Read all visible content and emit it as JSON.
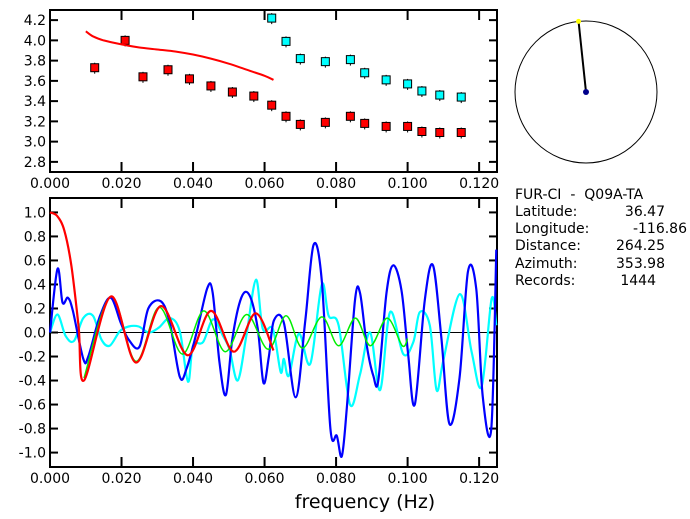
{
  "info": {
    "title": "FUR-CI  -  Q09A-TA",
    "rows": [
      {
        "label": "Latitude:",
        "value": "36.47"
      },
      {
        "label": "Longitude:",
        "value": "-116.86"
      },
      {
        "label": "Distance:",
        "value": "264.25"
      },
      {
        "label": "Azimuth:",
        "value": "353.98"
      },
      {
        "label": "Records:",
        "value": "1444"
      }
    ]
  },
  "colors": {
    "red": "#ff0000",
    "cyan": "#00ffff",
    "blue": "#0000ff",
    "green": "#00ee00",
    "yellow": "#ffff00",
    "navy": "#00008b"
  },
  "chart_data": [
    {
      "type": "scatter",
      "title": "",
      "xlabel": "",
      "ylabel": "",
      "xlim": [
        0,
        0.125
      ],
      "ylim": [
        2.7,
        4.3
      ],
      "xticks": [
        "0.000",
        "0.020",
        "0.040",
        "0.060",
        "0.080",
        "0.100",
        "0.120"
      ],
      "yticks": [
        "2.8",
        "3.0",
        "3.2",
        "3.4",
        "3.6",
        "3.8",
        "4.0",
        "4.2"
      ],
      "series": [
        {
          "name": "red-points",
          "color": "red",
          "kind": "squares",
          "x": [
            0.0125,
            0.021,
            0.026,
            0.033,
            0.039,
            0.045,
            0.051,
            0.057,
            0.062,
            0.066,
            0.07,
            0.077,
            0.084,
            0.088,
            0.094,
            0.1,
            0.104,
            0.109,
            0.115
          ],
          "y": [
            3.73,
            4.0,
            3.64,
            3.71,
            3.62,
            3.55,
            3.49,
            3.45,
            3.36,
            3.25,
            3.17,
            3.19,
            3.25,
            3.18,
            3.15,
            3.15,
            3.1,
            3.09,
            3.09
          ]
        },
        {
          "name": "cyan-points",
          "color": "cyan",
          "kind": "squares",
          "x": [
            0.062,
            0.066,
            0.07,
            0.077,
            0.084,
            0.088,
            0.094,
            0.1,
            0.104,
            0.109,
            0.115
          ],
          "y": [
            4.22,
            3.99,
            3.82,
            3.79,
            3.81,
            3.68,
            3.61,
            3.57,
            3.5,
            3.46,
            3.44
          ]
        },
        {
          "name": "red-curve",
          "color": "red",
          "kind": "line",
          "x": [
            0.01,
            0.012,
            0.015,
            0.02,
            0.025,
            0.03,
            0.035,
            0.04,
            0.045,
            0.05,
            0.055,
            0.06,
            0.0625
          ],
          "y": [
            4.09,
            4.04,
            4.0,
            3.96,
            3.93,
            3.91,
            3.89,
            3.86,
            3.82,
            3.77,
            3.71,
            3.65,
            3.61
          ]
        }
      ]
    },
    {
      "type": "line",
      "xlabel": "frequency (Hz)",
      "ylabel": "",
      "xlim": [
        0,
        0.125
      ],
      "ylim": [
        -1.12,
        1.12
      ],
      "xticks": [
        "0.000",
        "0.020",
        "0.040",
        "0.060",
        "0.080",
        "0.100",
        "0.120"
      ],
      "yticks": [
        "-1.0",
        "-0.8",
        "-0.6",
        "-0.4",
        "-0.2",
        "0.0",
        "0.2",
        "0.4",
        "0.6",
        "0.8",
        "1.0"
      ],
      "series": [
        {
          "name": "cyan",
          "color": "cyan",
          "x": [
            0,
            0.0021,
            0.0044,
            0.0067,
            0.0093,
            0.012,
            0.0144,
            0.0167,
            0.0195,
            0.022,
            0.0248,
            0.0276,
            0.0304,
            0.0335,
            0.0363,
            0.0386,
            0.04,
            0.0428,
            0.0456,
            0.0484,
            0.0502,
            0.0525,
            0.0549,
            0.0576,
            0.0595,
            0.0623,
            0.0645,
            0.0654,
            0.0668,
            0.0696,
            0.0728,
            0.076,
            0.0779,
            0.0807,
            0.0839,
            0.0867,
            0.0895,
            0.0923,
            0.0951,
            0.0988,
            0.1016,
            0.1034,
            0.1062,
            0.1081,
            0.11,
            0.1146,
            0.1179,
            0.1207,
            0.1235,
            0.1248
          ],
          "y": [
            0,
            0.15,
            -0.03,
            -0.07,
            0.12,
            0.14,
            -0.06,
            -0.11,
            0.01,
            0.05,
            0.05,
            0,
            0.04,
            0.12,
            0.01,
            -0.41,
            -0.11,
            -0.08,
            0.11,
            -0.03,
            -0.14,
            -0.4,
            -0.03,
            0.44,
            0.03,
            0.03,
            -0.33,
            -0.22,
            -0.36,
            -0.01,
            -0.26,
            0.4,
            0.14,
            0.06,
            -0.6,
            -0.35,
            0,
            -0.48,
            0.17,
            -0.18,
            -0.08,
            0.17,
            0.06,
            -0.48,
            -0.23,
            0.32,
            -0.16,
            -0.45,
            0.28,
            0.06
          ]
        },
        {
          "name": "blue",
          "color": "blue",
          "x": [
            0,
            0.0021,
            0.0035,
            0.005,
            0.0064,
            0.0093,
            0.0107,
            0.014,
            0.017,
            0.0198,
            0.022,
            0.025,
            0.0275,
            0.031,
            0.0335,
            0.0363,
            0.0382,
            0.041,
            0.044,
            0.0455,
            0.0474,
            0.0492,
            0.051,
            0.0535,
            0.0558,
            0.0581,
            0.0597,
            0.0612,
            0.0626,
            0.0654,
            0.0687,
            0.0714,
            0.0737,
            0.076,
            0.0784,
            0.0802,
            0.0816,
            0.083,
            0.0853,
            0.0867,
            0.0886,
            0.0904,
            0.0918,
            0.0941,
            0.096,
            0.0983,
            0.1001,
            0.102,
            0.1048,
            0.1071,
            0.1094,
            0.1117,
            0.1145,
            0.1169,
            0.1192,
            0.121,
            0.1234,
            0.1248
          ],
          "y": [
            0,
            0.53,
            0.25,
            0.29,
            0.18,
            -0.22,
            -0.2,
            0.14,
            0.29,
            0.08,
            -0.06,
            -0.12,
            0.2,
            0.26,
            0.08,
            -0.37,
            -0.3,
            0,
            0.37,
            0.33,
            -0.25,
            -0.52,
            -0.05,
            0.29,
            0.31,
            0.03,
            -0.42,
            -0.2,
            0.1,
            0.08,
            -0.54,
            0.1,
            0.73,
            0.43,
            -0.8,
            -0.86,
            -1.03,
            -0.63,
            0.27,
            0.33,
            -0.11,
            -0.36,
            -0.4,
            0.33,
            0.56,
            0.35,
            -0.17,
            -0.6,
            0.27,
            0.56,
            -0.03,
            -0.76,
            -0.38,
            0.51,
            0.36,
            -0.53,
            -0.8,
            0.69
          ]
        },
        {
          "name": "green",
          "color": "green",
          "x": [
            0.0095,
            0.017,
            0.024,
            0.0305,
            0.037,
            0.043,
            0.049,
            0.055,
            0.061,
            0.066,
            0.0706,
            0.076,
            0.0807,
            0.0854,
            0.0896,
            0.0943,
            0.0985,
            0.1
          ],
          "y": [
            -0.38,
            0.3,
            -0.24,
            0.21,
            -0.18,
            0.18,
            -0.16,
            0.15,
            -0.14,
            0.14,
            -0.13,
            0.13,
            -0.11,
            0.12,
            -0.11,
            0.12,
            -0.11,
            -0.05
          ]
        },
        {
          "name": "red",
          "color": "red",
          "x": [
            0,
            0.002,
            0.004,
            0.006,
            0.008,
            0.0095,
            0.017,
            0.024,
            0.031,
            0.0385,
            0.045,
            0.0514,
            0.0575,
            0.0625
          ],
          "y": [
            1.0,
            0.97,
            0.85,
            0.55,
            0.05,
            -0.4,
            0.3,
            -0.25,
            0.22,
            -0.19,
            0.18,
            -0.16,
            0.16,
            -0.15
          ]
        }
      ]
    },
    {
      "type": "polar-inset",
      "azimuth_deg": 353.98
    }
  ]
}
